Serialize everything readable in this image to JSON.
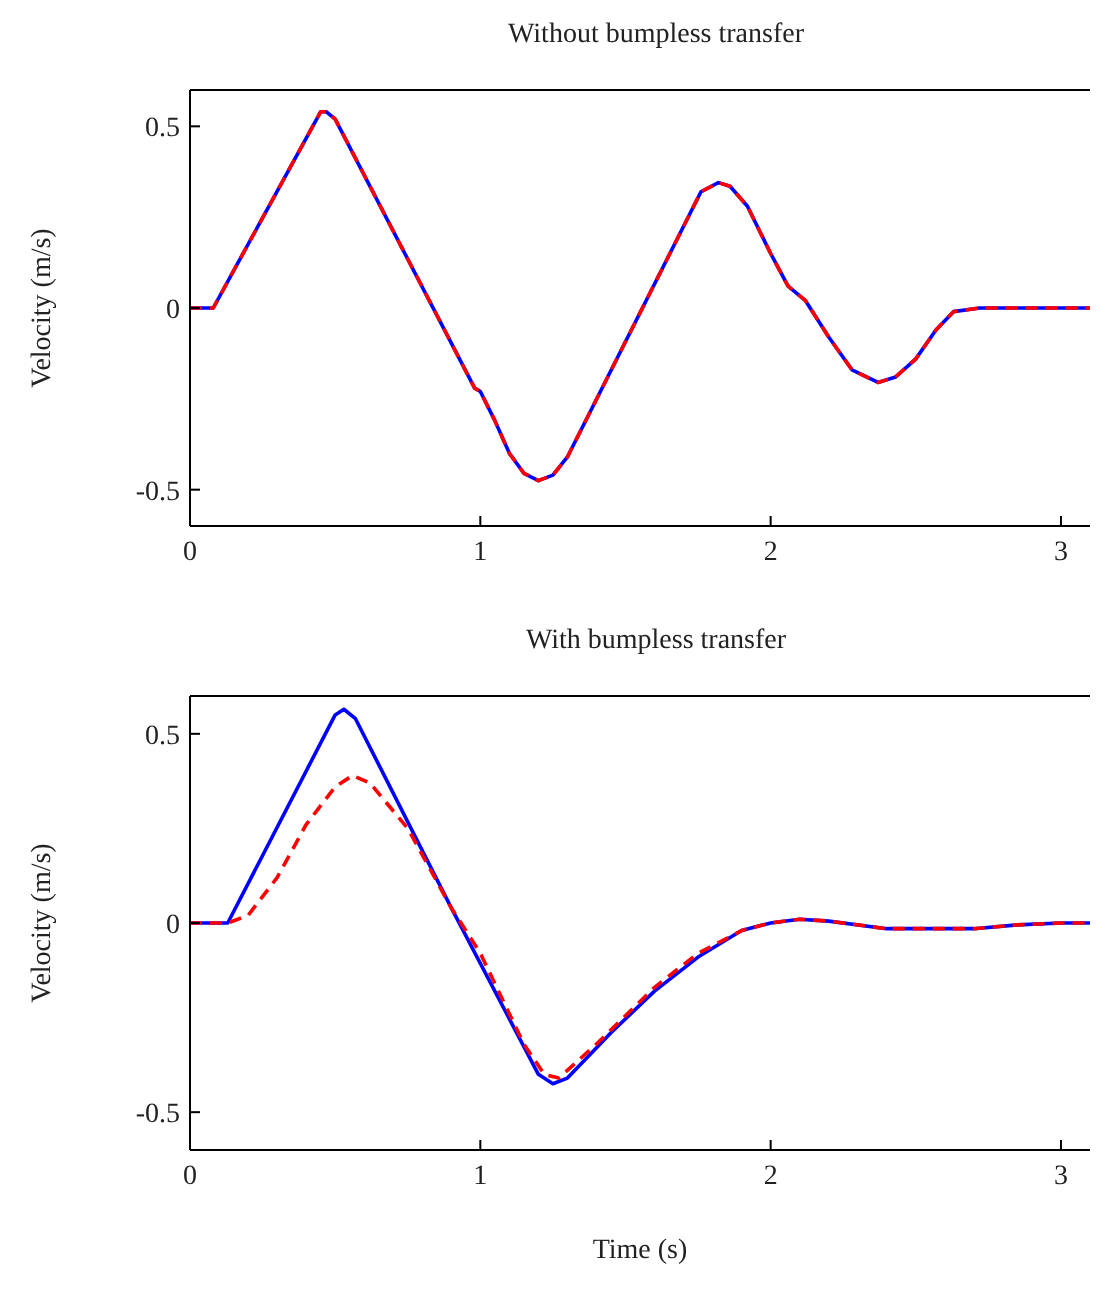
{
  "chart_data": [
    {
      "type": "line",
      "title": "Without bumpless transfer",
      "ylabel": "Velocity (m/s)",
      "xlim": [
        0,
        3.1
      ],
      "ylim": [
        -0.6,
        0.6
      ],
      "xticks": [
        0,
        1,
        2,
        3
      ],
      "yticks": [
        -0.5,
        0,
        0.5
      ],
      "legend": false,
      "series": [
        {
          "type": "line",
          "color": "#0000ff",
          "line_style": "solid",
          "x": [
            0,
            0.08,
            0.45,
            0.47,
            0.5,
            0.98,
            1.0,
            1.05,
            1.1,
            1.15,
            1.2,
            1.25,
            1.3,
            1.76,
            1.82,
            1.86,
            1.92,
            2.0,
            2.06,
            2.12,
            2.2,
            2.28,
            2.37,
            2.43,
            2.5,
            2.57,
            2.63,
            2.72,
            3.1
          ],
          "values": [
            0,
            0,
            0.54,
            0.54,
            0.52,
            -0.22,
            -0.23,
            -0.31,
            -0.4,
            -0.455,
            -0.475,
            -0.46,
            -0.41,
            0.32,
            0.345,
            0.335,
            0.28,
            0.15,
            0.06,
            0.02,
            -0.08,
            -0.17,
            -0.205,
            -0.19,
            -0.14,
            -0.06,
            -0.01,
            0,
            0
          ]
        },
        {
          "type": "line",
          "color": "#ff0000",
          "line_style": "dashed",
          "x": [
            0,
            0.08,
            0.45,
            0.47,
            0.5,
            0.98,
            1.0,
            1.05,
            1.1,
            1.15,
            1.2,
            1.25,
            1.3,
            1.76,
            1.82,
            1.86,
            1.92,
            2.0,
            2.06,
            2.12,
            2.2,
            2.28,
            2.37,
            2.43,
            2.5,
            2.57,
            2.63,
            2.72,
            3.1
          ],
          "values": [
            0,
            0,
            0.54,
            0.54,
            0.52,
            -0.22,
            -0.23,
            -0.31,
            -0.4,
            -0.455,
            -0.475,
            -0.46,
            -0.41,
            0.32,
            0.345,
            0.335,
            0.28,
            0.15,
            0.06,
            0.02,
            -0.08,
            -0.17,
            -0.205,
            -0.19,
            -0.14,
            -0.06,
            -0.01,
            0,
            0
          ]
        }
      ]
    },
    {
      "type": "line",
      "title": "With bumpless transfer",
      "xlabel": "Time (s)",
      "ylabel": "Velocity (m/s)",
      "xlim": [
        0,
        3.1
      ],
      "ylim": [
        -0.6,
        0.6
      ],
      "xticks": [
        0,
        1,
        2,
        3
      ],
      "yticks": [
        -0.5,
        0,
        0.5
      ],
      "legend": false,
      "series": [
        {
          "type": "line",
          "color": "#0000ff",
          "line_style": "solid",
          "x": [
            0,
            0.13,
            0.5,
            0.53,
            0.57,
            0.9,
            1.2,
            1.25,
            1.3,
            1.45,
            1.6,
            1.75,
            1.9,
            2.0,
            2.1,
            2.2,
            2.4,
            2.7,
            2.85,
            3.0,
            3.1
          ],
          "values": [
            0,
            0,
            0.55,
            0.565,
            0.54,
            0.04,
            -0.4,
            -0.425,
            -0.41,
            -0.29,
            -0.18,
            -0.09,
            -0.02,
            0,
            0.01,
            0.005,
            -0.015,
            -0.015,
            -0.005,
            0,
            0
          ]
        },
        {
          "type": "line",
          "color": "#ff0000",
          "line_style": "dashed",
          "x": [
            0,
            0.13,
            0.2,
            0.3,
            0.4,
            0.5,
            0.56,
            0.62,
            0.75,
            0.9,
            1.0,
            1.15,
            1.22,
            1.27,
            1.4,
            1.6,
            1.75,
            1.9,
            2.0,
            2.1,
            2.2,
            2.4,
            2.7,
            2.85,
            3.0,
            3.1
          ],
          "values": [
            0,
            0,
            0.02,
            0.12,
            0.26,
            0.36,
            0.39,
            0.37,
            0.25,
            0.04,
            -0.08,
            -0.32,
            -0.4,
            -0.41,
            -0.32,
            -0.17,
            -0.08,
            -0.02,
            0,
            0.01,
            0.005,
            -0.015,
            -0.015,
            -0.005,
            0,
            0
          ]
        }
      ]
    }
  ]
}
